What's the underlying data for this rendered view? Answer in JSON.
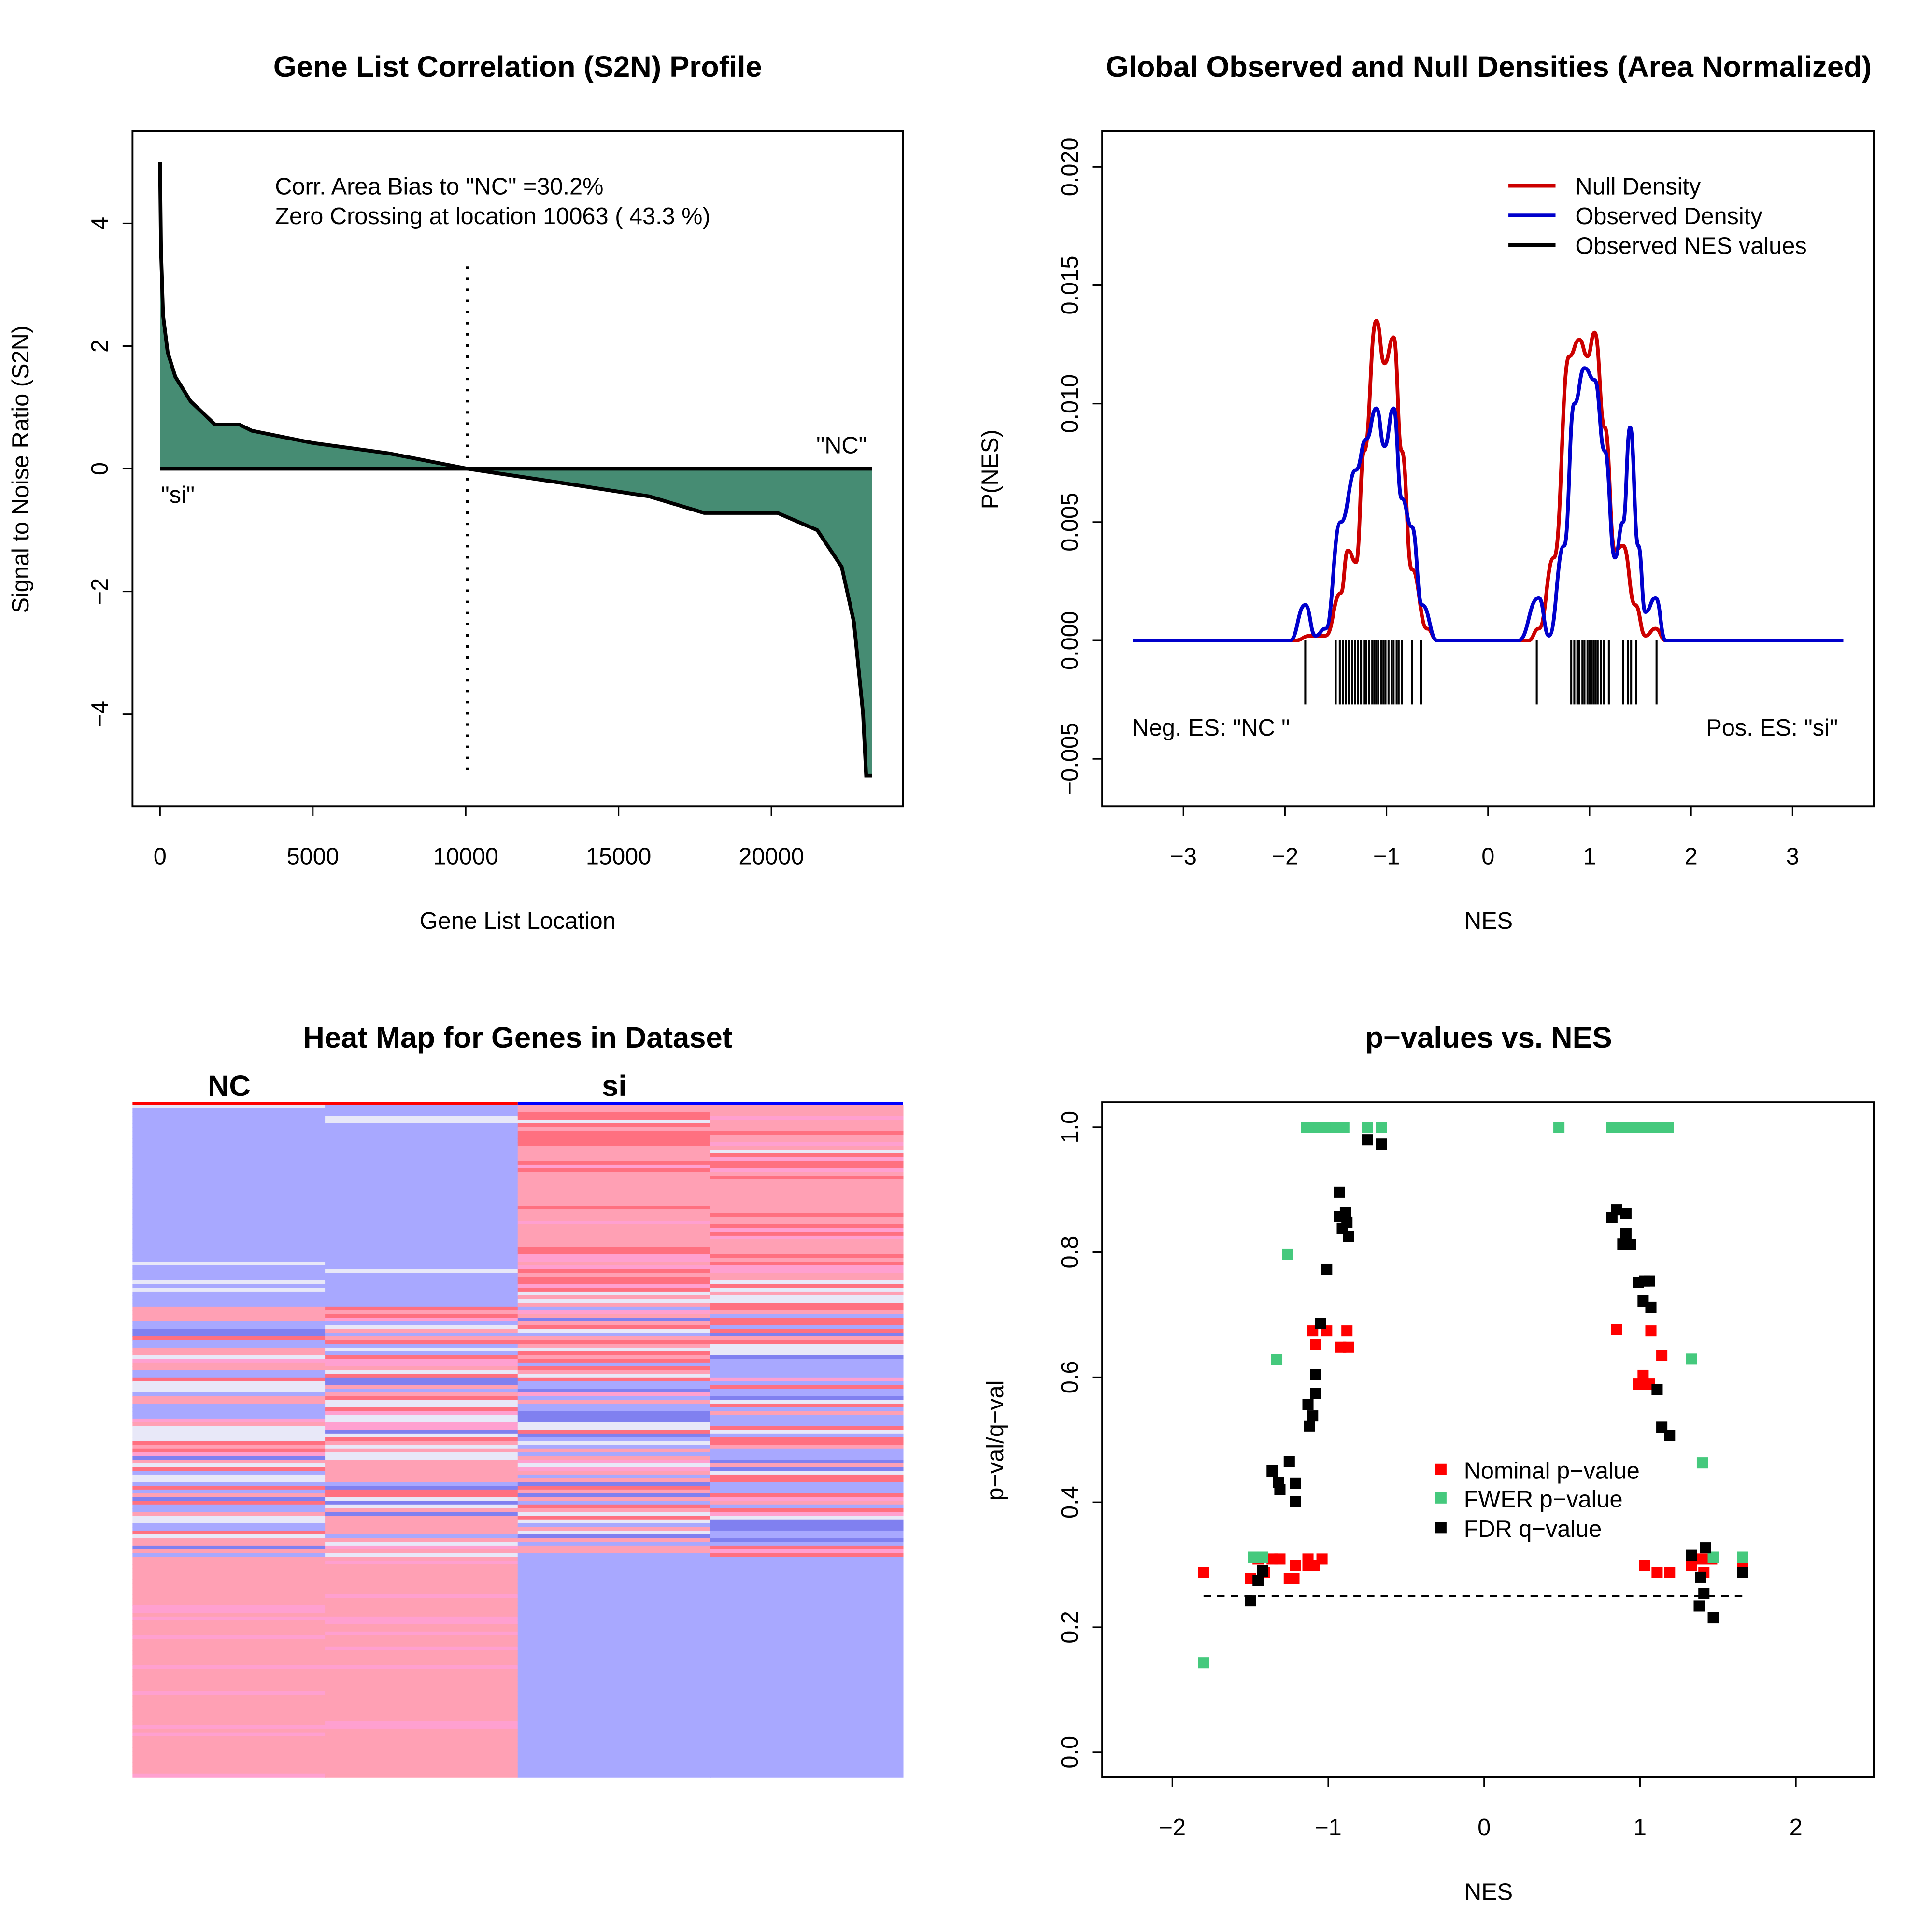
{
  "colors": {
    "s2n_fill": "#468C73",
    "null": "#CC0000",
    "observed": "#0000CC",
    "nominal": "#FF0000",
    "fwer": "#45C97D",
    "fdr": "#000000",
    "heat_blue": "#A8A8FF",
    "heat_pink": "#FFA0B4",
    "heat_red": "#FF7080",
    "heat_lightpink": "#FFA0D0",
    "heat_white": "#E8E8F8",
    "heat_dblue": "#8080F0"
  },
  "chart_data": [
    {
      "type": "area",
      "title": "Gene List Correlation (S2N) Profile",
      "xlabel": "Gene List Location",
      "ylabel": "Signal to Noise Ratio (S2N)",
      "xlim": [
        -900,
        24300
      ],
      "ylim": [
        -5.5,
        5.5
      ],
      "xticks": [
        0,
        5000,
        10000,
        15000,
        20000
      ],
      "yticks": [
        -4,
        -2,
        0,
        2,
        4
      ],
      "annotations": {
        "bias": "Corr. Area Bias to \"NC\" =30.2%",
        "zero": "Zero Crossing at location  10063  ( 43.3  %)",
        "pos_label": "\"si\"",
        "neg_label": "\"NC\""
      },
      "zero_crossing": 10063,
      "x": [
        0,
        30,
        100,
        250,
        500,
        1000,
        1800,
        2600,
        3000,
        5000,
        7500,
        10063,
        13000,
        16000,
        17800,
        20200,
        21500,
        22300,
        22700,
        23000,
        23100,
        23300
      ],
      "y": [
        5.0,
        3.6,
        2.5,
        1.9,
        1.5,
        1.1,
        0.72,
        0.72,
        0.62,
        0.42,
        0.25,
        0,
        -0.22,
        -0.45,
        -0.72,
        -0.72,
        -1.0,
        -1.6,
        -2.5,
        -4.0,
        -5.0,
        -5.0
      ]
    },
    {
      "type": "line",
      "title": "Global Observed and Null Densities (Area Normalized)",
      "xlabel": "NES",
      "ylabel": "P(NES)",
      "xlim": [
        -3.8,
        3.8
      ],
      "ylim": [
        -0.007,
        0.0215
      ],
      "xticks": [
        -3,
        -2,
        -1,
        0,
        1,
        2,
        3
      ],
      "yticks": [
        -0.005,
        0.0,
        0.005,
        0.01,
        0.015,
        0.02
      ],
      "ytick_labels": [
        "−0.005",
        "0.000",
        "0.005",
        "0.010",
        "0.015",
        "0.020"
      ],
      "legend": {
        "placement": "top-right",
        "entries": [
          "Null Density",
          "Observed Density",
          "Observed NES values"
        ]
      },
      "annotations": {
        "neg": "Neg. ES: \"NC \"",
        "pos": "Pos. ES: \"si\""
      },
      "series": [
        {
          "name": "Null Density",
          "x": [
            -3.5,
            -1.9,
            -1.75,
            -1.6,
            -1.45,
            -1.38,
            -1.3,
            -1.22,
            -1.1,
            -1.02,
            -0.93,
            -0.85,
            -0.75,
            -0.6,
            -0.5,
            0.4,
            0.5,
            0.65,
            0.8,
            0.9,
            0.98,
            1.05,
            1.15,
            1.25,
            1.33,
            1.45,
            1.55,
            1.65,
            1.75,
            3.5
          ],
          "y": [
            0,
            0,
            0.0002,
            0.0002,
            0.002,
            0.0038,
            0.0033,
            0.008,
            0.0135,
            0.0117,
            0.0128,
            0.008,
            0.003,
            0.0005,
            0,
            0,
            0.0005,
            0.0035,
            0.012,
            0.0127,
            0.012,
            0.013,
            0.009,
            0.0038,
            0.004,
            0.0015,
            0.0002,
            0.0005,
            0,
            0
          ]
        },
        {
          "name": "Observed Density",
          "x": [
            -3.5,
            -1.95,
            -1.8,
            -1.7,
            -1.6,
            -1.45,
            -1.3,
            -1.2,
            -1.1,
            -1.02,
            -0.93,
            -0.85,
            -0.75,
            -0.65,
            -0.5,
            0.3,
            0.5,
            0.6,
            0.75,
            0.85,
            0.95,
            1.05,
            1.15,
            1.25,
            1.33,
            1.4,
            1.48,
            1.55,
            1.65,
            1.75,
            3.5
          ],
          "y": [
            0,
            0,
            0.0015,
            0.0002,
            0.0005,
            0.005,
            0.0072,
            0.0085,
            0.0098,
            0.0082,
            0.0098,
            0.006,
            0.0048,
            0.0015,
            0,
            0,
            0.0018,
            0.0002,
            0.004,
            0.01,
            0.0115,
            0.011,
            0.008,
            0.0035,
            0.005,
            0.009,
            0.004,
            0.0012,
            0.0018,
            0,
            0
          ]
        }
      ],
      "nes_values": [
        -1.8,
        -1.5,
        -1.46,
        -1.43,
        -1.4,
        -1.37,
        -1.34,
        -1.31,
        -1.28,
        -1.25,
        -1.22,
        -1.2,
        -1.17,
        -1.14,
        -1.12,
        -1.1,
        -1.08,
        -1.05,
        -1.03,
        -1.01,
        -0.98,
        -0.95,
        -0.93,
        -0.9,
        -0.88,
        -0.85,
        -0.75,
        -0.66,
        0.48,
        0.82,
        0.85,
        0.88,
        0.9,
        0.93,
        0.95,
        0.98,
        1.0,
        1.02,
        1.04,
        1.06,
        1.08,
        1.11,
        1.14,
        1.19,
        1.33,
        1.38,
        1.41,
        1.46,
        1.66
      ]
    },
    {
      "type": "heatmap",
      "title": "Heat Map for Genes in Dataset",
      "column_groups": [
        "NC",
        "si"
      ],
      "columns": 4
    },
    {
      "type": "scatter",
      "title": "p−values vs. NES",
      "xlabel": "NES",
      "ylabel": "p−val/q−val",
      "xlim": [
        -2.45,
        2.5
      ],
      "ylim": [
        -0.04,
        1.04
      ],
      "xticks": [
        -2,
        -1,
        0,
        1,
        2
      ],
      "xtick_labels": [
        "−2",
        "−1",
        "0",
        "1",
        "2"
      ],
      "yticks": [
        0.0,
        0.2,
        0.4,
        0.6,
        0.8,
        1.0
      ],
      "ytick_labels": [
        "0.0",
        "0.2",
        "0.4",
        "0.6",
        "0.8",
        "1.0"
      ],
      "threshold": {
        "y": 0.25,
        "x": [
          -1.8,
          1.66
        ]
      },
      "legend": {
        "placement": "center-right"
      },
      "series": [
        {
          "name": "Nominal p−value",
          "points": [
            [
              -1.8,
              0.287
            ],
            [
              -1.5,
              0.278
            ],
            [
              -1.45,
              0.309
            ],
            [
              -1.41,
              0.287
            ],
            [
              -1.36,
              0.309
            ],
            [
              -1.31,
              0.309
            ],
            [
              -1.25,
              0.278
            ],
            [
              -1.22,
              0.278
            ],
            [
              -1.21,
              0.299
            ],
            [
              -1.13,
              0.309
            ],
            [
              -1.13,
              0.299
            ],
            [
              -1.09,
              0.299
            ],
            [
              -1.04,
              0.309
            ],
            [
              -1.1,
              0.674
            ],
            [
              -1.01,
              0.674
            ],
            [
              -1.08,
              0.652
            ],
            [
              -0.88,
              0.674
            ],
            [
              -0.92,
              0.648
            ],
            [
              -0.87,
              0.648
            ],
            [
              0.85,
              0.676
            ],
            [
              1.07,
              0.674
            ],
            [
              1.14,
              0.635
            ],
            [
              1.02,
              0.603
            ],
            [
              0.99,
              0.589
            ],
            [
              1.06,
              0.589
            ],
            [
              1.03,
              0.299
            ],
            [
              1.11,
              0.287
            ],
            [
              1.19,
              0.287
            ],
            [
              1.33,
              0.299
            ],
            [
              1.39,
              0.309
            ],
            [
              1.41,
              0.287
            ],
            [
              1.46,
              0.309
            ],
            [
              1.66,
              0.299
            ]
          ]
        },
        {
          "name": "FWER p−value",
          "points": [
            [
              -1.8,
              0.143
            ],
            [
              -1.48,
              0.312
            ],
            [
              -1.42,
              0.312
            ],
            [
              -1.33,
              0.628
            ],
            [
              -1.26,
              0.797
            ],
            [
              -1.14,
              1.0
            ],
            [
              -1.1,
              1.0
            ],
            [
              -1.06,
              1.0
            ],
            [
              -1.02,
              1.0
            ],
            [
              -0.95,
              1.0
            ],
            [
              -0.9,
              1.0
            ],
            [
              -0.75,
              1.0
            ],
            [
              -0.66,
              1.0
            ],
            [
              0.48,
              1.0
            ],
            [
              0.82,
              1.0
            ],
            [
              0.88,
              1.0
            ],
            [
              0.94,
              1.0
            ],
            [
              1.0,
              1.0
            ],
            [
              1.06,
              1.0
            ],
            [
              1.12,
              1.0
            ],
            [
              1.18,
              1.0
            ],
            [
              1.33,
              0.629
            ],
            [
              1.4,
              0.463
            ],
            [
              1.47,
              0.312
            ],
            [
              1.66,
              0.312
            ]
          ]
        },
        {
          "name": "FDR q−value",
          "points": [
            [
              -1.5,
              0.242
            ],
            [
              -1.45,
              0.275
            ],
            [
              -1.42,
              0.29
            ],
            [
              -1.36,
              0.45
            ],
            [
              -1.32,
              0.432
            ],
            [
              -1.31,
              0.42
            ],
            [
              -1.25,
              0.465
            ],
            [
              -1.21,
              0.43
            ],
            [
              -1.21,
              0.401
            ],
            [
              -1.13,
              0.556
            ],
            [
              -1.12,
              0.522
            ],
            [
              -1.1,
              0.538
            ],
            [
              -1.08,
              0.574
            ],
            [
              -1.08,
              0.604
            ],
            [
              -1.05,
              0.686
            ],
            [
              -1.01,
              0.773
            ],
            [
              -0.93,
              0.896
            ],
            [
              -0.93,
              0.857
            ],
            [
              -0.91,
              0.838
            ],
            [
              -0.89,
              0.864
            ],
            [
              -0.88,
              0.848
            ],
            [
              -0.87,
              0.825
            ],
            [
              -0.75,
              0.98
            ],
            [
              -0.66,
              0.973
            ],
            [
              0.82,
              0.855
            ],
            [
              0.85,
              0.868
            ],
            [
              0.91,
              0.862
            ],
            [
              0.91,
              0.83
            ],
            [
              0.89,
              0.813
            ],
            [
              0.94,
              0.812
            ],
            [
              0.99,
              0.752
            ],
            [
              1.03,
              0.754
            ],
            [
              1.06,
              0.754
            ],
            [
              1.02,
              0.722
            ],
            [
              1.07,
              0.712
            ],
            [
              1.11,
              0.58
            ],
            [
              1.14,
              0.52
            ],
            [
              1.19,
              0.507
            ],
            [
              1.33,
              0.315
            ],
            [
              1.42,
              0.327
            ],
            [
              1.39,
              0.28
            ],
            [
              1.41,
              0.254
            ],
            [
              1.38,
              0.234
            ],
            [
              1.47,
              0.215
            ],
            [
              1.66,
              0.287
            ]
          ]
        }
      ]
    }
  ]
}
